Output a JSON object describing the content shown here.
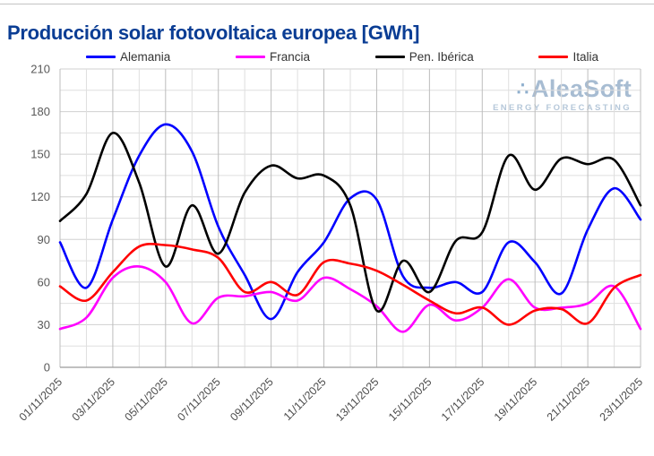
{
  "title": "Producción solar fotovoltaica europea [GWh]",
  "watermark": {
    "logo_glyph": "∴",
    "brand": "AleaSoft",
    "tagline": "ENERGY FORECASTING",
    "brand_color": "#a7bcd2",
    "tagline_color": "#b6c8da"
  },
  "style": {
    "title_color": "#0a3d94",
    "axis_label_color": "#595959",
    "date_label_color": "#4d4d4d",
    "grid_major_color": "#d0d0d0",
    "grid_minor_color": "#dfdfdf",
    "grid_vert_labeled_color": "#bcbcbc",
    "grid_vert_plain_color": "#dfdfdf",
    "axis_line_color": "#9a9a9a",
    "line_width": 2.6
  },
  "chart_data": {
    "type": "line",
    "title": "Producción solar fotovoltaica europea [GWh]",
    "xlabel": "",
    "ylabel": "",
    "ylim": [
      0,
      210
    ],
    "y_ticks": [
      0,
      30,
      60,
      90,
      120,
      150,
      180,
      210
    ],
    "grid_step": 15,
    "grid": true,
    "legend_position": "top",
    "x_tick_every": 2,
    "x": [
      "01/11/2025",
      "02/11/2025",
      "03/11/2025",
      "04/11/2025",
      "05/11/2025",
      "06/11/2025",
      "07/11/2025",
      "08/11/2025",
      "09/11/2025",
      "10/11/2025",
      "11/11/2025",
      "12/11/2025",
      "13/11/2025",
      "14/11/2025",
      "15/11/2025",
      "16/11/2025",
      "17/11/2025",
      "18/11/2025",
      "19/11/2025",
      "20/11/2025",
      "21/11/2025",
      "22/11/2025",
      "23/11/2025"
    ],
    "series": [
      {
        "name": "Alemania",
        "color": "#0000ff",
        "values": [
          88,
          56,
          104,
          149,
          171,
          152,
          99,
          65,
          34,
          67,
          88,
          119,
          118,
          64,
          56,
          60,
          53,
          88,
          74,
          52,
          97,
          126,
          104
        ]
      },
      {
        "name": "Francia",
        "color": "#ff00ff",
        "values": [
          27,
          35,
          63,
          71,
          60,
          31,
          49,
          50,
          53,
          47,
          63,
          55,
          43,
          25,
          44,
          33,
          42,
          62,
          42,
          42,
          45,
          57,
          27
        ]
      },
      {
        "name": "Pen. Ibérica",
        "color": "#000000",
        "values": [
          103,
          122,
          165,
          130,
          71,
          114,
          80,
          123,
          142,
          133,
          135,
          114,
          40,
          75,
          53,
          89,
          95,
          149,
          125,
          147,
          143,
          146,
          114
        ]
      },
      {
        "name": "Italia",
        "color": "#ff0000",
        "values": [
          57,
          47,
          67,
          85,
          86,
          83,
          77,
          53,
          60,
          51,
          74,
          73,
          68,
          58,
          47,
          38,
          42,
          30,
          40,
          41,
          31,
          56,
          65
        ]
      }
    ]
  }
}
